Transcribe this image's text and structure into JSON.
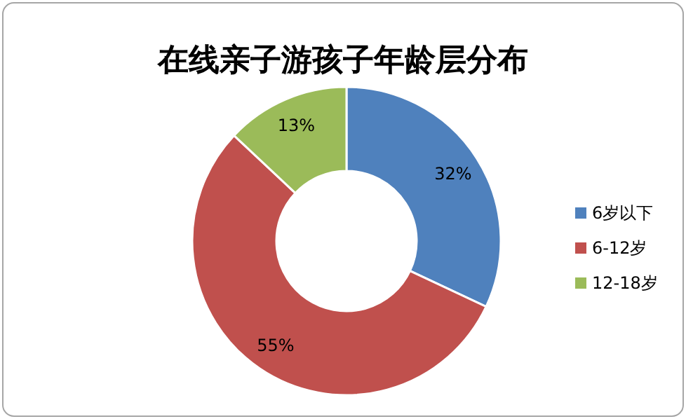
{
  "chart_data": {
    "type": "donut",
    "title": "在线亲子游孩子年龄层分布",
    "categories": [
      "6岁以下",
      "6-12岁",
      "12-18岁"
    ],
    "values": [
      32,
      55,
      13
    ],
    "colors": [
      "#4f81bd",
      "#c0504d",
      "#9bbb59"
    ],
    "value_labels": [
      "32%",
      "55%",
      "13%"
    ],
    "legend": "right"
  }
}
